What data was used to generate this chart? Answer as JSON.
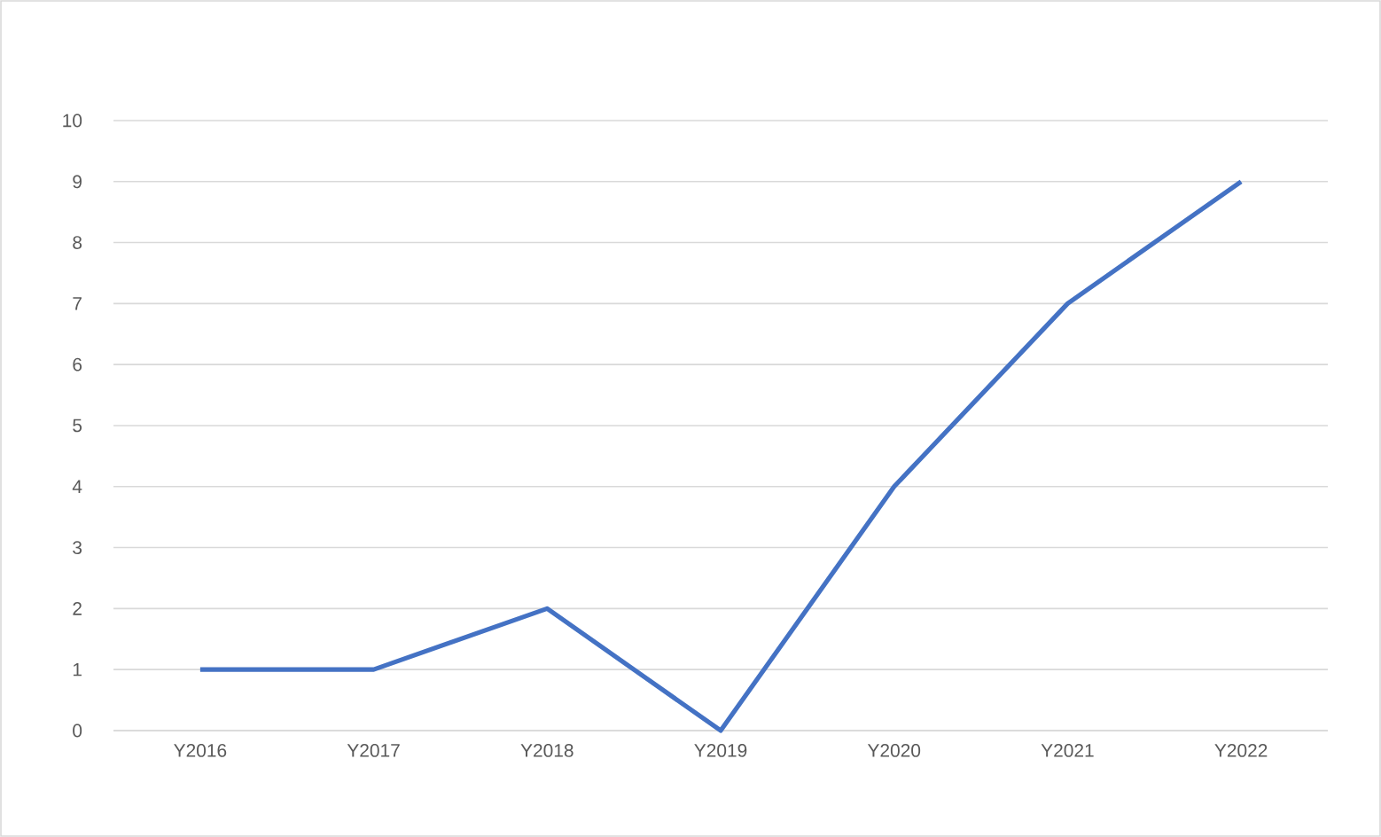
{
  "chart_data": {
    "type": "line",
    "categories": [
      "Y2016",
      "Y2017",
      "Y2018",
      "Y2019",
      "Y2020",
      "Y2021",
      "Y2022"
    ],
    "values": [
      1,
      1,
      2,
      0,
      4,
      7,
      9
    ],
    "color": "#4472c4",
    "ylim": [
      0,
      10
    ],
    "yticks": [
      0,
      1,
      2,
      3,
      4,
      5,
      6,
      7,
      8,
      9,
      10
    ],
    "grid": "y"
  }
}
